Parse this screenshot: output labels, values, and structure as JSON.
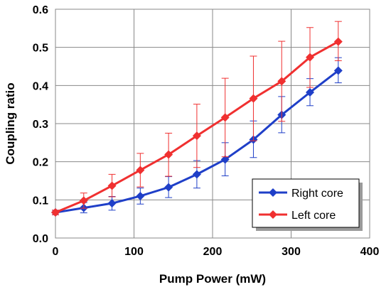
{
  "chart_data": {
    "type": "line",
    "xlabel": "Pump Power (mW)",
    "ylabel": "Coupling ratio",
    "xlim": [
      0,
      400
    ],
    "ylim": [
      0,
      0.6
    ],
    "x_ticks": [
      "0",
      "100",
      "200",
      "300",
      "400"
    ],
    "y_ticks": [
      "0.0",
      "0.1",
      "0.2",
      "0.3",
      "0.4",
      "0.5",
      "0.6"
    ],
    "grid": true,
    "legend_position": "lower-right",
    "series": [
      {
        "name": "Right core",
        "color": "#1f3fc8",
        "marker": "diamond",
        "x": [
          0,
          36,
          72,
          108,
          144,
          180,
          216,
          252,
          288,
          324,
          360
        ],
        "y": [
          0.067,
          0.079,
          0.091,
          0.11,
          0.133,
          0.167,
          0.206,
          0.258,
          0.323,
          0.382,
          0.439
        ],
        "err_low": [
          0.061,
          0.066,
          0.073,
          0.089,
          0.106,
          0.131,
          0.163,
          0.211,
          0.276,
          0.347,
          0.407
        ],
        "err_high": [
          0.073,
          0.093,
          0.109,
          0.131,
          0.161,
          0.203,
          0.25,
          0.307,
          0.371,
          0.418,
          0.473
        ]
      },
      {
        "name": "Left core",
        "color": "#f03030",
        "marker": "diamond",
        "x": [
          0,
          36,
          72,
          108,
          144,
          180,
          216,
          252,
          288,
          324,
          360
        ],
        "y": [
          0.067,
          0.098,
          0.137,
          0.178,
          0.219,
          0.268,
          0.316,
          0.366,
          0.411,
          0.474,
          0.515
        ],
        "err_low": [
          0.061,
          0.078,
          0.108,
          0.134,
          0.162,
          0.185,
          0.213,
          0.255,
          0.306,
          0.395,
          0.465
        ],
        "err_high": [
          0.073,
          0.118,
          0.167,
          0.222,
          0.275,
          0.351,
          0.419,
          0.477,
          0.516,
          0.552,
          0.568
        ]
      }
    ]
  }
}
